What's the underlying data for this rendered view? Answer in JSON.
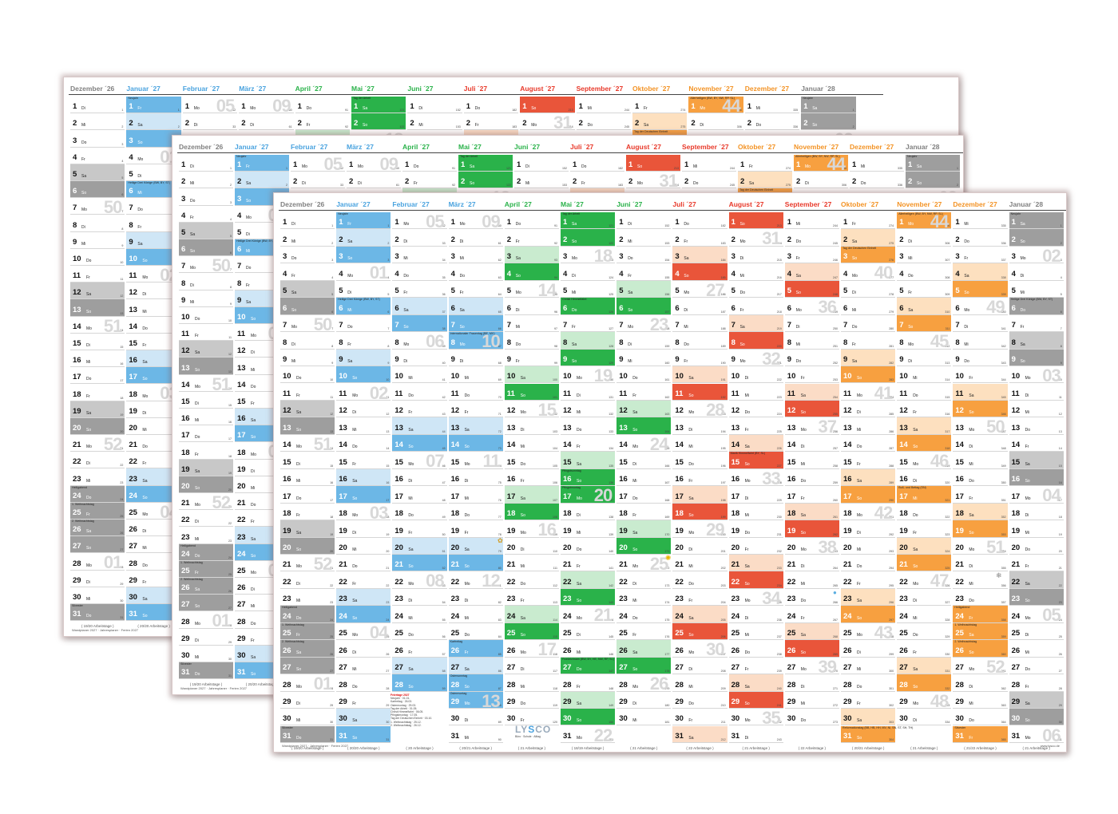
{
  "weekdays": [
    "Mo",
    "Di",
    "Mi",
    "Do",
    "Fr",
    "Sa",
    "So"
  ],
  "months": [
    {
      "name": "Dezember ´26",
      "days": 31,
      "start": 1,
      "color": "#808080"
    },
    {
      "name": "Januar ´27",
      "days": 31,
      "start": 4,
      "color": "#4aa3df"
    },
    {
      "name": "Februar ´27",
      "days": 28,
      "start": 0,
      "color": "#4aa3df"
    },
    {
      "name": "März ´27",
      "days": 31,
      "start": 0,
      "color": "#4aa3df"
    },
    {
      "name": "April ´27",
      "days": 30,
      "start": 3,
      "color": "#2ab24a"
    },
    {
      "name": "Mai ´27",
      "days": 31,
      "start": 5,
      "color": "#2ab24a"
    },
    {
      "name": "Juni ´27",
      "days": 30,
      "start": 1,
      "color": "#2ab24a"
    },
    {
      "name": "Juli ´27",
      "days": 31,
      "start": 3,
      "color": "#e8392a"
    },
    {
      "name": "August ´27",
      "days": 31,
      "start": 6,
      "color": "#e8392a"
    },
    {
      "name": "September ´27",
      "days": 30,
      "start": 2,
      "color": "#e8392a"
    },
    {
      "name": "Oktober ´27",
      "days": 31,
      "start": 4,
      "color": "#f39325"
    },
    {
      "name": "November ´27",
      "days": 30,
      "start": 0,
      "color": "#f39325"
    },
    {
      "name": "Dezember ´27",
      "days": 31,
      "start": 2,
      "color": "#f39325"
    },
    {
      "name": "Januar ´28",
      "days": 31,
      "start": 5,
      "color": "#808080"
    }
  ],
  "month_palettes": {
    "#808080": {
      "light": "#c8c8c8",
      "dark": "#9e9e9e"
    },
    "#4aa3df": {
      "light": "#cfe6f6",
      "dark": "#6cb7e6"
    },
    "#2ab24a": {
      "light": "#c9ebcf",
      "dark": "#2ab24a"
    },
    "#e8392a": {
      "light": "#fbdcc6",
      "dark": "#e9553a"
    },
    "#f39325": {
      "light": "#fde0bf",
      "dark": "#f7a040"
    }
  },
  "holidays": {
    "0": {
      "25": "1. Weihnachtstag",
      "26": "2. Weihnachtstag",
      "24": "Heiligabend",
      "31": "Silvester"
    },
    "1": {
      "1": "Neujahr",
      "6": "Heilige Drei Könige (BW, BY, ST)"
    },
    "3": {
      "8": "Internationaler Frauentag (BE, MV)",
      "26": "Karfreitag",
      "28": "Ostersonntag",
      "29": "Ostermontag"
    },
    "5": {
      "1": "Tag der Arbeit",
      "6": "Christi Himmelfahrt",
      "16": "Pfingstsonntag",
      "17": "Pfingstmontag",
      "27": "Fronleichnam (BW, BY, HE, NW, RP, SL)"
    },
    "8": {
      "15": "Mariä Himmelfahrt (BY, SL)"
    },
    "10": {
      "3": "Tag der Deutschen Einheit",
      "31": "Reformationstag (BB, HB, HH, MV, NI, SN, ST, SH, TH)"
    },
    "11": {
      "1": "Allerheiligen (BW, BY, NW, RP, SL)",
      "17": "Buß- und Bettag (SN)"
    },
    "12": {
      "24": "Heiligabend",
      "25": "1. Weihnachtstag",
      "26": "2. Weihnachtstag",
      "31": "Silvester"
    },
    "13": {
      "1": "Neujahr",
      "6": "Heilige Drei Könige (BW, BY, ST)"
    }
  },
  "workdays": [
    "( 19/20 Arbeitstage )",
    "( 20/20 Arbeitstage )",
    "( 20 Arbeitstage )",
    "( 20/21 Arbeitstage )",
    "( 21 Arbeitstage )",
    "( 18/19 Arbeitstage )",
    "( 21 Arbeitstage )",
    "( 22 Arbeitstage )",
    "( 21 Arbeitstage )",
    "( 22 Arbeitstage )",
    "( 20/21 Arbeitstage )",
    "( 21 Arbeitstage )",
    "( 21/22 Arbeitstage )",
    "( 21 Arbeitstage )"
  ],
  "logo": {
    "left": "LY",
    "mid": "S",
    "right": "CO",
    "tagline": "Büro · Schule · Alltag"
  },
  "footer_left": "Wandplaner 2027 · Jahresplaner · Ferien 2027",
  "footer_right": "www.lysco.de",
  "legend": {
    "title": "Feiertage 2027",
    "items": [
      "Neujahr · 01.01.",
      "Karfreitag · 26.03.",
      "Ostermontag · 29.03.",
      "Tag der Arbeit · 01.05.",
      "Christi Himmelfahrt · 06.05.",
      "Pfingstmontag · 17.05.",
      "Tag der Deutschen Einheit · 03.10.",
      "1. Weihnachtstag · 25.12.",
      "2. Weihnachtstag · 26.12."
    ]
  }
}
